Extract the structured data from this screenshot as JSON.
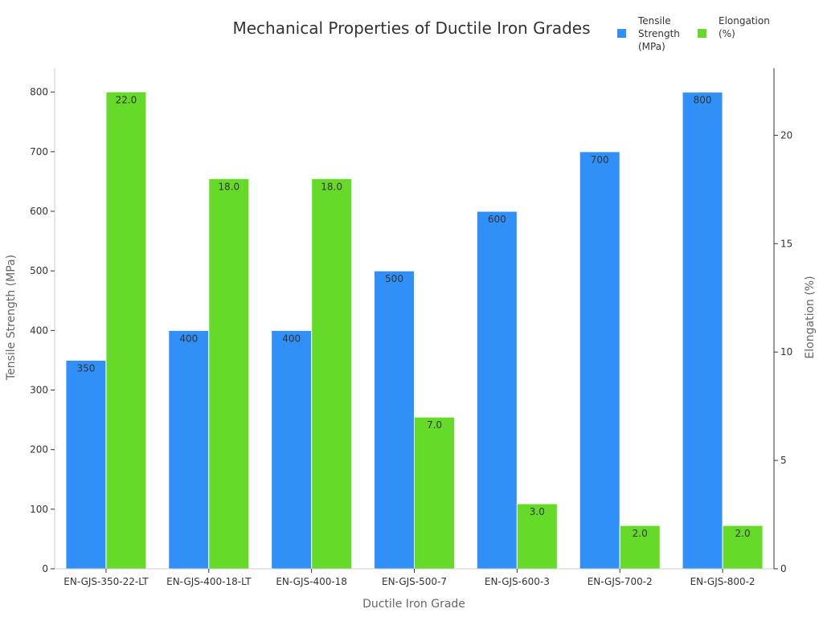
{
  "chart_data": {
    "type": "bar",
    "title": "Mechanical Properties of Ductile Iron Grades",
    "xlabel": "Ductile Iron Grade",
    "ylabel": "Tensile Strength (MPa)",
    "y2label": "Elongation (%)",
    "categories": [
      "EN-GJS-350-22-LT",
      "EN-GJS-400-18-LT",
      "EN-GJS-400-18",
      "EN-GJS-500-7",
      "EN-GJS-600-3",
      "EN-GJS-700-2",
      "EN-GJS-800-2"
    ],
    "ylim": [
      0,
      840
    ],
    "y2lim": [
      0,
      23.09
    ],
    "yticks": [
      0,
      100,
      200,
      300,
      400,
      500,
      600,
      700,
      800
    ],
    "y2ticks": [
      0,
      5,
      10,
      15,
      20
    ],
    "legend_position": "top-right",
    "series": [
      {
        "name": "Tensile Strength (MPa)",
        "legend_lines": [
          "Tensile",
          "Strength",
          "(MPa)"
        ],
        "axis": "left",
        "color": "#3090f8",
        "values": [
          350,
          400,
          400,
          500,
          600,
          700,
          800
        ],
        "labels": [
          "350",
          "400",
          "400",
          "500",
          "600",
          "700",
          "800"
        ]
      },
      {
        "name": "Elongation (%)",
        "legend_lines": [
          "Elongation",
          "(%)"
        ],
        "axis": "right",
        "color": "#66da28",
        "values": [
          22.0,
          18.0,
          18.0,
          7.0,
          3.0,
          2.0,
          2.0
        ],
        "labels": [
          "22.0",
          "18.0",
          "18.0",
          "7.0",
          "3.0",
          "2.0",
          "2.0"
        ]
      }
    ]
  }
}
